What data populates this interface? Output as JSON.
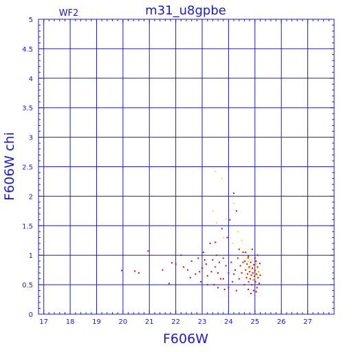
{
  "chart_data": {
    "type": "scatter",
    "title": "m31_u8gpbe",
    "subtitle": "WF2",
    "xlabel": "F606W",
    "ylabel": "F606W  chi",
    "xlim": [
      16.8,
      28
    ],
    "ylim": [
      0,
      5
    ],
    "xticks": [
      "17",
      "18",
      "19",
      "20",
      "21",
      "22",
      "23",
      "24",
      "25",
      "26",
      "27"
    ],
    "xtick_values": [
      17,
      18,
      19,
      20,
      21,
      22,
      23,
      24,
      25,
      26,
      27
    ],
    "yticks": [
      "0",
      "0.5",
      "1",
      "1.5",
      "2",
      "2.5",
      "3",
      "3.5",
      "4",
      "4.5",
      "5"
    ],
    "ytick_values": [
      0,
      0.5,
      1,
      1.5,
      2,
      2.5,
      3,
      3.5,
      4,
      4.5,
      5
    ],
    "grid": true,
    "colors": {
      "axis": "#1a1acc",
      "grid": "#1a1acc",
      "red": "#dd0000",
      "yellow": "#ffe000",
      "title": "#2a2acc"
    },
    "series": [
      {
        "color": "red",
        "points": [
          [
            19.95,
            0.74
          ],
          [
            20.45,
            0.73
          ],
          [
            20.6,
            0.7
          ],
          [
            20.95,
            1.07
          ],
          [
            21.5,
            0.75
          ],
          [
            21.75,
            0.52
          ],
          [
            21.85,
            0.87
          ],
          [
            22.0,
            0.85
          ],
          [
            22.2,
            1.0
          ],
          [
            22.3,
            0.8
          ],
          [
            22.45,
            0.75
          ],
          [
            22.55,
            0.62
          ],
          [
            22.6,
            0.9
          ],
          [
            22.75,
            0.68
          ],
          [
            22.85,
            0.95
          ],
          [
            22.95,
            0.55
          ],
          [
            23.0,
            0.78
          ],
          [
            23.05,
            1.05
          ],
          [
            23.15,
            0.85
          ],
          [
            23.2,
            0.65
          ],
          [
            23.3,
            1.2
          ],
          [
            23.35,
            0.72
          ],
          [
            23.4,
            0.92
          ],
          [
            23.45,
            0.5
          ],
          [
            23.5,
            0.8
          ],
          [
            23.55,
            1.0
          ],
          [
            23.6,
            0.7
          ],
          [
            23.65,
            0.88
          ],
          [
            23.7,
            0.6
          ],
          [
            23.75,
            1.45
          ],
          [
            23.8,
            0.95
          ],
          [
            23.85,
            0.42
          ],
          [
            23.9,
            0.82
          ],
          [
            23.95,
            1.3
          ],
          [
            24.0,
            0.7
          ],
          [
            24.05,
            1.6
          ],
          [
            24.1,
            0.88
          ],
          [
            24.15,
            0.55
          ],
          [
            24.2,
            2.05
          ],
          [
            24.25,
            0.75
          ],
          [
            24.3,
            1.75
          ],
          [
            24.35,
            0.95
          ],
          [
            24.4,
            0.6
          ],
          [
            24.45,
            0.82
          ],
          [
            24.5,
            0.7
          ],
          [
            24.55,
            1.05
          ],
          [
            24.6,
            0.5
          ],
          [
            24.62,
            0.9
          ],
          [
            24.65,
            0.75
          ],
          [
            24.68,
            0.62
          ],
          [
            24.7,
            0.85
          ],
          [
            24.72,
            0.68
          ],
          [
            24.74,
            0.95
          ],
          [
            24.76,
            0.55
          ],
          [
            24.78,
            0.8
          ],
          [
            24.8,
            0.72
          ],
          [
            24.82,
            0.6
          ],
          [
            24.84,
            0.88
          ],
          [
            24.86,
            0.66
          ],
          [
            24.88,
            0.5
          ],
          [
            24.9,
            0.78
          ],
          [
            24.92,
            0.7
          ],
          [
            24.94,
            0.58
          ],
          [
            24.96,
            0.84
          ],
          [
            24.98,
            0.64
          ],
          [
            25.0,
            0.74
          ],
          [
            25.02,
            0.55
          ],
          [
            25.04,
            0.9
          ],
          [
            25.06,
            0.68
          ],
          [
            25.08,
            0.45
          ],
          [
            25.1,
            0.8
          ],
          [
            25.12,
            0.62
          ],
          [
            25.14,
            0.72
          ],
          [
            25.16,
            0.52
          ],
          [
            25.18,
            0.86
          ],
          [
            25.2,
            0.66
          ],
          [
            24.85,
            0.35
          ],
          [
            24.95,
            0.4
          ],
          [
            25.05,
            0.38
          ],
          [
            24.75,
            0.42
          ],
          [
            23.2,
            0.5
          ],
          [
            23.6,
            0.45
          ],
          [
            24.0,
            0.45
          ],
          [
            24.3,
            0.4
          ],
          [
            23.8,
            0.6
          ],
          [
            24.2,
            0.68
          ],
          [
            22.9,
            0.72
          ],
          [
            23.1,
            0.92
          ],
          [
            23.5,
            1.22
          ],
          [
            24.4,
            1.1
          ],
          [
            24.55,
            0.88
          ],
          [
            24.65,
            1.05
          ],
          [
            24.9,
            1.1
          ],
          [
            25.0,
            0.95
          ],
          [
            25.1,
            1.0
          ],
          [
            24.75,
            0.98
          ]
        ]
      },
      {
        "color": "yellow",
        "points": [
          [
            23.5,
            2.42
          ],
          [
            23.75,
            2.3
          ],
          [
            23.4,
            1.75
          ],
          [
            23.55,
            1.55
          ],
          [
            23.9,
            1.62
          ],
          [
            24.2,
            1.88
          ],
          [
            24.35,
            1.4
          ],
          [
            24.15,
            1.2
          ],
          [
            23.8,
            1.3
          ],
          [
            24.5,
            1.25
          ],
          [
            24.6,
            1.05
          ],
          [
            24.75,
            0.9
          ],
          [
            24.85,
            0.82
          ],
          [
            24.95,
            0.76
          ],
          [
            25.05,
            0.85
          ],
          [
            25.15,
            0.72
          ],
          [
            24.7,
            0.95
          ],
          [
            24.9,
            0.68
          ],
          [
            25.0,
            0.62
          ],
          [
            25.1,
            0.78
          ],
          [
            24.8,
            0.78
          ],
          [
            24.88,
            0.92
          ],
          [
            24.92,
            0.58
          ],
          [
            25.08,
            0.66
          ]
        ]
      }
    ]
  }
}
